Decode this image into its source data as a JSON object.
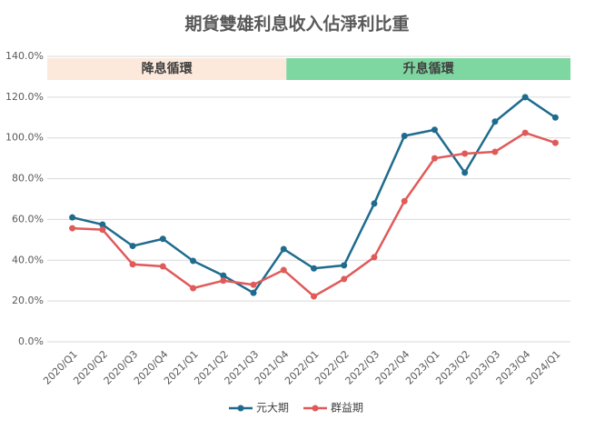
{
  "chart_data": {
    "type": "line",
    "title": "期貨雙雄利息收入佔淨利比重",
    "categories": [
      "2020/Q1",
      "2020/Q2",
      "2020/Q3",
      "2020/Q4",
      "2021/Q1",
      "2021/Q2",
      "2021/Q3",
      "2021/Q4",
      "2022/Q1",
      "2022/Q2",
      "2022/Q3",
      "2022/Q4",
      "2023/Q1",
      "2023/Q2",
      "2023/Q3",
      "2023/Q4",
      "2024/Q1"
    ],
    "series": [
      {
        "name": "元大期",
        "color": "#1f6b8e",
        "values": [
          61,
          57.5,
          47,
          50.5,
          39.7,
          32.5,
          24,
          45.5,
          36,
          37.5,
          67.8,
          101,
          104,
          83,
          108,
          120,
          110
        ]
      },
      {
        "name": "群益期",
        "color": "#e05a5a",
        "values": [
          55.7,
          55,
          38,
          37,
          26.3,
          30,
          28,
          35.2,
          22.3,
          30.8,
          41.5,
          69,
          90,
          92.3,
          93.2,
          102.5,
          97.6
        ]
      }
    ],
    "ylim": [
      0,
      140
    ],
    "yticks": [
      {
        "value": 0,
        "label": "0.0%"
      },
      {
        "value": 20,
        "label": "20.0%"
      },
      {
        "value": 40,
        "label": "40.0%"
      },
      {
        "value": 60,
        "label": "60.0%"
      },
      {
        "value": 80,
        "label": "80.0%"
      },
      {
        "value": 100,
        "label": "100.0%"
      },
      {
        "value": 120,
        "label": "120.0%"
      },
      {
        "value": 140,
        "label": "140.0%"
      }
    ],
    "grid": true,
    "bands": [
      {
        "label": "降息循環",
        "color": "#fde9dc"
      },
      {
        "label": "升息循環",
        "color": "#7ed6a0"
      }
    ],
    "legend": "bottom"
  }
}
